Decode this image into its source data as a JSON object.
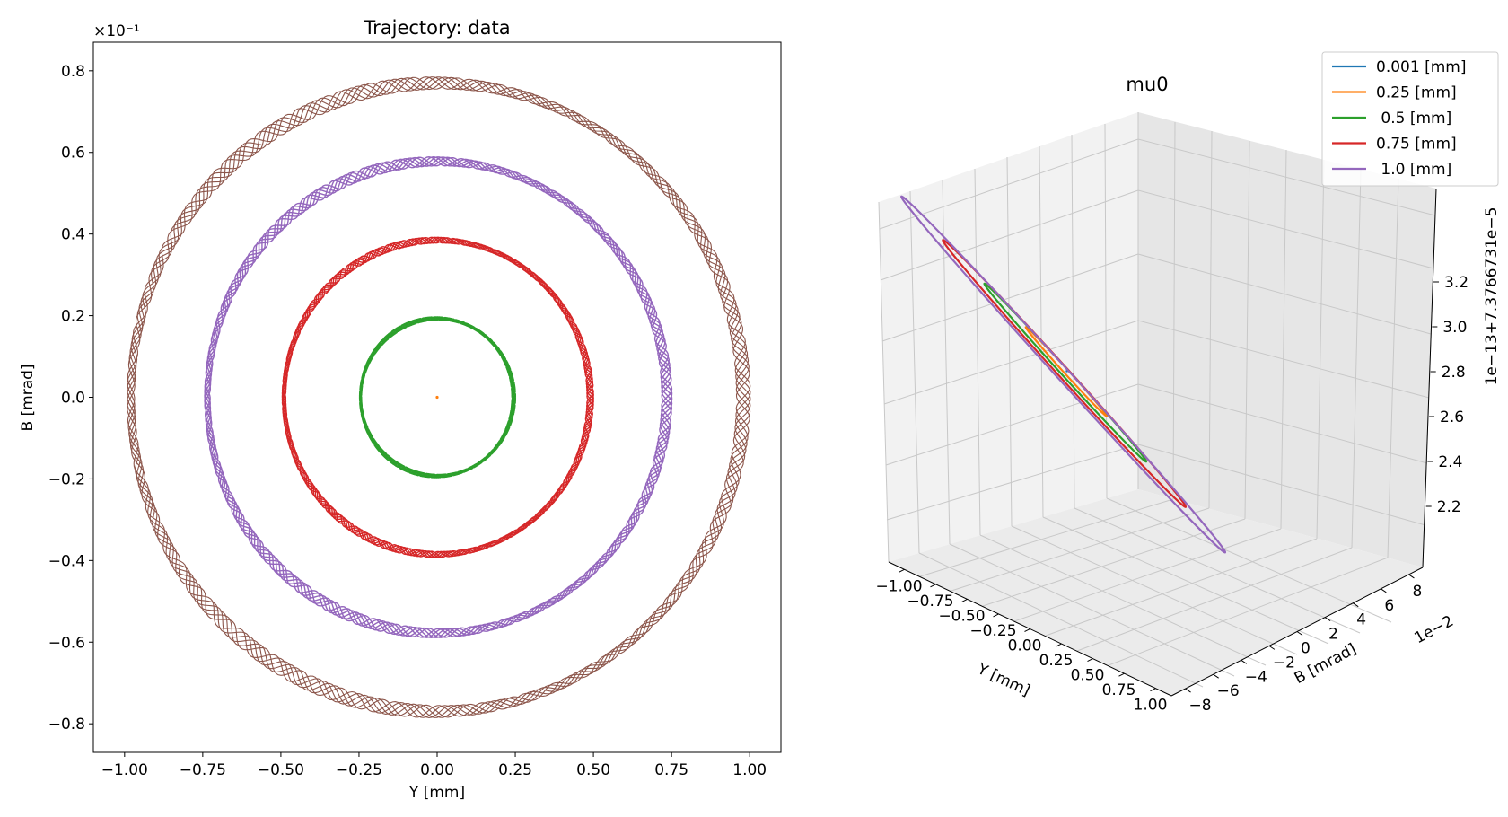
{
  "chart_data": [
    {
      "type": "scatter",
      "title": "Trajectory: data",
      "xlabel": "Y [mm]",
      "ylabel": "B [mrad]",
      "y_scale_label": "×10⁻¹",
      "xlim": [
        -1.1,
        1.1
      ],
      "ylim": [
        -0.87,
        0.87
      ],
      "xticks": [
        -1.0,
        -0.75,
        -0.5,
        -0.25,
        0.0,
        0.25,
        0.5,
        0.75,
        1.0
      ],
      "xtick_labels": [
        "−1.00",
        "−0.75",
        "−0.50",
        "−0.25",
        "0.00",
        "0.25",
        "0.50",
        "0.75",
        "1.00"
      ],
      "yticks": [
        -0.8,
        -0.6,
        -0.4,
        -0.2,
        0.0,
        0.2,
        0.4,
        0.6,
        0.8
      ],
      "ytick_labels": [
        "−0.8",
        "−0.6",
        "−0.4",
        "−0.2",
        "0.0",
        "0.2",
        "0.4",
        "0.6",
        "0.8"
      ],
      "grid": false,
      "series": [
        {
          "color": "#ff7f0e",
          "radius_x": 0.005,
          "radius_y": 0.004,
          "ripple": 0
        },
        {
          "color": "#2ca02c",
          "radius_x": 0.245,
          "radius_y": 0.193,
          "ripple": 0.004
        },
        {
          "color": "#d62728",
          "radius_x": 0.49,
          "radius_y": 0.385,
          "ripple": 0.007
        },
        {
          "color": "#9467bd",
          "radius_x": 0.735,
          "radius_y": 0.578,
          "ripple": 0.011
        },
        {
          "color": "#8c564b",
          "radius_x": 0.98,
          "radius_y": 0.77,
          "ripple": 0.015
        }
      ]
    },
    {
      "type": "line",
      "title": "mu0",
      "xlabel": "Y [mm]",
      "ylabel": "B [mrad]",
      "zlabel": "1e−13+7.3766731e−5",
      "y_offset_label": "1e−2",
      "xtick_labels": [
        "−1.00",
        "−0.75",
        "−0.50",
        "−0.25",
        "0.00",
        "0.25",
        "0.50",
        "0.75",
        "1.00"
      ],
      "ytick_labels": [
        "−8",
        "−6",
        "−4",
        "−2",
        "0",
        "2",
        "4",
        "6",
        "8"
      ],
      "ztick_labels": [
        "2.2",
        "2.4",
        "2.6",
        "2.8",
        "3.0",
        "3.2"
      ],
      "legend_position": "top-right",
      "series": [
        {
          "name": "0.001 [mm]",
          "color": "#1f77b4",
          "amplitude": 0.001
        },
        {
          "name": "0.25 [mm]",
          "color": "#ff7f0e",
          "amplitude": 0.25
        },
        {
          "name": " 0.5 [mm]",
          "color": "#2ca02c",
          "amplitude": 0.5
        },
        {
          "name": "0.75 [mm]",
          "color": "#d62728",
          "amplitude": 0.75
        },
        {
          "name": " 1.0 [mm]",
          "color": "#9467bd",
          "amplitude": 1.0
        }
      ]
    }
  ]
}
